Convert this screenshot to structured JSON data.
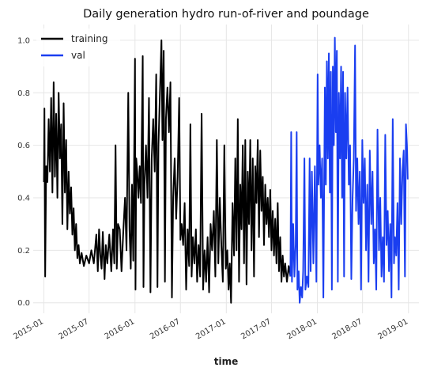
{
  "chart_data": {
    "type": "line",
    "title": "Daily generation hydro run-of-river and poundage",
    "xlabel": "time",
    "ylabel": "",
    "x_axis_type": "date",
    "xlim": [
      "2014-11-19",
      "2019-02-12"
    ],
    "ylim": [
      -0.04,
      1.06
    ],
    "y_ticks": [
      "0.0",
      "0.2",
      "0.4",
      "0.6",
      "0.8",
      "1.0"
    ],
    "x_ticks": [
      "2015-01",
      "2015-07",
      "2016-01",
      "2016-07",
      "2017-01",
      "2017-07",
      "2018-01",
      "2018-07",
      "2019-01"
    ],
    "grid": true,
    "legend_position": "top-left",
    "colors": {
      "training": "#000000",
      "val": "#1a3ef0",
      "grid": "#e6e6e6"
    },
    "series": [
      {
        "name": "training",
        "color": "#000000",
        "points": [
          [
            "2015-01-01",
            0.46
          ],
          [
            "2015-01-03",
            0.74
          ],
          [
            "2015-01-06",
            0.1
          ],
          [
            "2015-01-10",
            0.52
          ],
          [
            "2015-01-15",
            0.46
          ],
          [
            "2015-01-20",
            0.7
          ],
          [
            "2015-01-25",
            0.5
          ],
          [
            "2015-01-30",
            0.78
          ],
          [
            "2015-02-04",
            0.42
          ],
          [
            "2015-02-09",
            0.84
          ],
          [
            "2015-02-14",
            0.48
          ],
          [
            "2015-02-19",
            0.72
          ],
          [
            "2015-02-24",
            0.4
          ],
          [
            "2015-03-01",
            0.8
          ],
          [
            "2015-03-06",
            0.55
          ],
          [
            "2015-03-11",
            0.68
          ],
          [
            "2015-03-16",
            0.3
          ],
          [
            "2015-03-21",
            0.76
          ],
          [
            "2015-03-26",
            0.42
          ],
          [
            "2015-03-31",
            0.62
          ],
          [
            "2015-04-05",
            0.28
          ],
          [
            "2015-04-10",
            0.5
          ],
          [
            "2015-04-15",
            0.34
          ],
          [
            "2015-04-20",
            0.44
          ],
          [
            "2015-04-25",
            0.26
          ],
          [
            "2015-04-30",
            0.36
          ],
          [
            "2015-05-05",
            0.2
          ],
          [
            "2015-05-10",
            0.3
          ],
          [
            "2015-05-15",
            0.17
          ],
          [
            "2015-05-20",
            0.22
          ],
          [
            "2015-05-25",
            0.15
          ],
          [
            "2015-06-01",
            0.19
          ],
          [
            "2015-06-10",
            0.14
          ],
          [
            "2015-06-20",
            0.18
          ],
          [
            "2015-07-01",
            0.15
          ],
          [
            "2015-07-10",
            0.2
          ],
          [
            "2015-07-20",
            0.15
          ],
          [
            "2015-07-30",
            0.26
          ],
          [
            "2015-08-05",
            0.12
          ],
          [
            "2015-08-10",
            0.28
          ],
          [
            "2015-08-15",
            0.18
          ],
          [
            "2015-08-20",
            0.13
          ],
          [
            "2015-08-25",
            0.27
          ],
          [
            "2015-09-01",
            0.09
          ],
          [
            "2015-09-06",
            0.22
          ],
          [
            "2015-09-12",
            0.15
          ],
          [
            "2015-09-20",
            0.26
          ],
          [
            "2015-09-28",
            0.12
          ],
          [
            "2015-10-05",
            0.28
          ],
          [
            "2015-10-10",
            0.15
          ],
          [
            "2015-10-15",
            0.6
          ],
          [
            "2015-10-20",
            0.13
          ],
          [
            "2015-10-25",
            0.3
          ],
          [
            "2015-11-01",
            0.28
          ],
          [
            "2015-11-08",
            0.12
          ],
          [
            "2015-11-15",
            0.27
          ],
          [
            "2015-11-22",
            0.4
          ],
          [
            "2015-11-28",
            0.2
          ],
          [
            "2015-12-05",
            0.8
          ],
          [
            "2015-12-10",
            0.28
          ],
          [
            "2015-12-15",
            0.13
          ],
          [
            "2015-12-20",
            0.45
          ],
          [
            "2015-12-25",
            0.16
          ],
          [
            "2016-01-01",
            0.93
          ],
          [
            "2016-01-03",
            0.05
          ],
          [
            "2016-01-06",
            0.55
          ],
          [
            "2016-01-10",
            0.5
          ],
          [
            "2016-01-15",
            0.4
          ],
          [
            "2016-01-20",
            0.52
          ],
          [
            "2016-01-25",
            0.38
          ],
          [
            "2016-02-01",
            0.94
          ],
          [
            "2016-02-04",
            0.06
          ],
          [
            "2016-02-08",
            0.45
          ],
          [
            "2016-02-14",
            0.6
          ],
          [
            "2016-02-20",
            0.4
          ],
          [
            "2016-02-26",
            0.78
          ],
          [
            "2016-03-03",
            0.04
          ],
          [
            "2016-03-08",
            0.55
          ],
          [
            "2016-03-14",
            0.7
          ],
          [
            "2016-03-20",
            0.5
          ],
          [
            "2016-03-26",
            0.87
          ],
          [
            "2016-03-31",
            0.06
          ],
          [
            "2016-04-04",
            0.6
          ],
          [
            "2016-04-10",
            0.8
          ],
          [
            "2016-04-16",
            1.0
          ],
          [
            "2016-04-20",
            0.62
          ],
          [
            "2016-04-25",
            0.96
          ],
          [
            "2016-04-30",
            0.08
          ],
          [
            "2016-05-04",
            0.7
          ],
          [
            "2016-05-10",
            0.82
          ],
          [
            "2016-05-16",
            0.65
          ],
          [
            "2016-05-22",
            0.84
          ],
          [
            "2016-05-28",
            0.02
          ],
          [
            "2016-06-02",
            0.4
          ],
          [
            "2016-06-08",
            0.55
          ],
          [
            "2016-06-14",
            0.32
          ],
          [
            "2016-06-20",
            0.48
          ],
          [
            "2016-06-26",
            0.78
          ],
          [
            "2016-07-01",
            0.24
          ],
          [
            "2016-07-06",
            0.3
          ],
          [
            "2016-07-12",
            0.22
          ],
          [
            "2016-07-18",
            0.38
          ],
          [
            "2016-07-24",
            0.05
          ],
          [
            "2016-07-30",
            0.28
          ],
          [
            "2016-08-05",
            0.14
          ],
          [
            "2016-08-10",
            0.68
          ],
          [
            "2016-08-15",
            0.1
          ],
          [
            "2016-08-20",
            0.25
          ],
          [
            "2016-08-26",
            0.15
          ],
          [
            "2016-09-01",
            0.28
          ],
          [
            "2016-09-06",
            0.08
          ],
          [
            "2016-09-12",
            0.22
          ],
          [
            "2016-09-18",
            0.1
          ],
          [
            "2016-09-24",
            0.72
          ],
          [
            "2016-09-30",
            0.05
          ],
          [
            "2016-10-06",
            0.2
          ],
          [
            "2016-10-12",
            0.08
          ],
          [
            "2016-10-18",
            0.25
          ],
          [
            "2016-10-24",
            0.04
          ],
          [
            "2016-10-30",
            0.3
          ],
          [
            "2016-11-05",
            0.2
          ],
          [
            "2016-11-12",
            0.35
          ],
          [
            "2016-11-18",
            0.1
          ],
          [
            "2016-11-24",
            0.62
          ],
          [
            "2016-11-30",
            0.15
          ],
          [
            "2016-12-06",
            0.4
          ],
          [
            "2016-12-12",
            0.22
          ],
          [
            "2016-12-18",
            0.08
          ],
          [
            "2016-12-24",
            0.6
          ],
          [
            "2016-12-30",
            0.13
          ],
          [
            "2017-01-05",
            0.2
          ],
          [
            "2017-01-10",
            0.05
          ],
          [
            "2017-01-15",
            0.15
          ],
          [
            "2017-01-20",
            0.0
          ],
          [
            "2017-01-26",
            0.38
          ],
          [
            "2017-02-01",
            0.18
          ],
          [
            "2017-02-06",
            0.55
          ],
          [
            "2017-02-11",
            0.2
          ],
          [
            "2017-02-16",
            0.7
          ],
          [
            "2017-02-21",
            0.08
          ],
          [
            "2017-02-26",
            0.45
          ],
          [
            "2017-03-03",
            0.28
          ],
          [
            "2017-03-08",
            0.6
          ],
          [
            "2017-03-13",
            0.15
          ],
          [
            "2017-03-18",
            0.62
          ],
          [
            "2017-03-23",
            0.07
          ],
          [
            "2017-03-28",
            0.5
          ],
          [
            "2017-04-02",
            0.3
          ],
          [
            "2017-04-07",
            0.62
          ],
          [
            "2017-04-12",
            0.2
          ],
          [
            "2017-04-17",
            0.55
          ],
          [
            "2017-04-22",
            0.1
          ],
          [
            "2017-04-27",
            0.52
          ],
          [
            "2017-05-02",
            0.38
          ],
          [
            "2017-05-07",
            0.62
          ],
          [
            "2017-05-12",
            0.25
          ],
          [
            "2017-05-17",
            0.58
          ],
          [
            "2017-05-22",
            0.35
          ],
          [
            "2017-05-27",
            0.48
          ],
          [
            "2017-06-01",
            0.22
          ],
          [
            "2017-06-06",
            0.45
          ],
          [
            "2017-06-11",
            0.3
          ],
          [
            "2017-06-16",
            0.4
          ],
          [
            "2017-06-21",
            0.25
          ],
          [
            "2017-06-26",
            0.43
          ],
          [
            "2017-07-01",
            0.2
          ],
          [
            "2017-07-06",
            0.35
          ],
          [
            "2017-07-11",
            0.18
          ],
          [
            "2017-07-16",
            0.32
          ],
          [
            "2017-07-21",
            0.15
          ],
          [
            "2017-07-26",
            0.38
          ],
          [
            "2017-07-31",
            0.12
          ],
          [
            "2017-08-05",
            0.25
          ],
          [
            "2017-08-10",
            0.08
          ],
          [
            "2017-08-15",
            0.18
          ],
          [
            "2017-08-20",
            0.1
          ],
          [
            "2017-08-25",
            0.15
          ],
          [
            "2017-09-01",
            0.08
          ],
          [
            "2017-09-08",
            0.14
          ],
          [
            "2017-09-15",
            0.1
          ]
        ]
      },
      {
        "name": "val",
        "color": "#1a3ef0",
        "points": [
          [
            "2017-09-15",
            0.1
          ],
          [
            "2017-09-18",
            0.65
          ],
          [
            "2017-09-21",
            0.08
          ],
          [
            "2017-09-26",
            0.3
          ],
          [
            "2017-10-01",
            0.1
          ],
          [
            "2017-10-06",
            0.22
          ],
          [
            "2017-10-10",
            0.65
          ],
          [
            "2017-10-13",
            0.05
          ],
          [
            "2017-10-18",
            0.12
          ],
          [
            "2017-10-22",
            0.0
          ],
          [
            "2017-10-27",
            0.06
          ],
          [
            "2017-11-01",
            0.02
          ],
          [
            "2017-11-05",
            0.12
          ],
          [
            "2017-11-10",
            0.55
          ],
          [
            "2017-11-14",
            0.05
          ],
          [
            "2017-11-20",
            0.1
          ],
          [
            "2017-11-26",
            0.06
          ],
          [
            "2017-12-01",
            0.55
          ],
          [
            "2017-12-05",
            0.12
          ],
          [
            "2017-12-10",
            0.5
          ],
          [
            "2017-12-16",
            0.15
          ],
          [
            "2017-12-22",
            0.52
          ],
          [
            "2017-12-28",
            0.08
          ],
          [
            "2018-01-02",
            0.87
          ],
          [
            "2018-01-05",
            0.45
          ],
          [
            "2018-01-10",
            0.6
          ],
          [
            "2018-01-15",
            0.4
          ],
          [
            "2018-01-20",
            0.55
          ],
          [
            "2018-01-25",
            0.02
          ],
          [
            "2018-01-31",
            0.82
          ],
          [
            "2018-02-04",
            0.45
          ],
          [
            "2018-02-08",
            0.92
          ],
          [
            "2018-02-12",
            0.55
          ],
          [
            "2018-02-16",
            0.95
          ],
          [
            "2018-02-20",
            0.42
          ],
          [
            "2018-02-24",
            0.88
          ],
          [
            "2018-02-28",
            0.05
          ],
          [
            "2018-03-04",
            0.9
          ],
          [
            "2018-03-08",
            0.6
          ],
          [
            "2018-03-12",
            1.01
          ],
          [
            "2018-03-16",
            0.65
          ],
          [
            "2018-03-20",
            0.96
          ],
          [
            "2018-03-24",
            0.08
          ],
          [
            "2018-03-28",
            0.8
          ],
          [
            "2018-04-02",
            0.55
          ],
          [
            "2018-04-06",
            0.9
          ],
          [
            "2018-04-10",
            0.4
          ],
          [
            "2018-04-14",
            0.88
          ],
          [
            "2018-04-18",
            0.1
          ],
          [
            "2018-04-22",
            0.8
          ],
          [
            "2018-04-27",
            0.55
          ],
          [
            "2018-05-02",
            0.82
          ],
          [
            "2018-05-07",
            0.45
          ],
          [
            "2018-05-12",
            0.6
          ],
          [
            "2018-05-17",
            0.09
          ],
          [
            "2018-05-22",
            0.4
          ],
          [
            "2018-05-27",
            0.55
          ],
          [
            "2018-06-01",
            0.98
          ],
          [
            "2018-06-05",
            0.35
          ],
          [
            "2018-06-10",
            0.55
          ],
          [
            "2018-06-15",
            0.3
          ],
          [
            "2018-06-20",
            0.5
          ],
          [
            "2018-06-25",
            0.05
          ],
          [
            "2018-06-30",
            0.62
          ],
          [
            "2018-07-05",
            0.38
          ],
          [
            "2018-07-10",
            0.55
          ],
          [
            "2018-07-15",
            0.2
          ],
          [
            "2018-07-20",
            0.45
          ],
          [
            "2018-07-25",
            0.08
          ],
          [
            "2018-07-30",
            0.58
          ],
          [
            "2018-08-05",
            0.3
          ],
          [
            "2018-08-10",
            0.5
          ],
          [
            "2018-08-15",
            0.15
          ],
          [
            "2018-08-20",
            0.28
          ],
          [
            "2018-08-25",
            0.05
          ],
          [
            "2018-08-30",
            0.66
          ],
          [
            "2018-09-05",
            0.2
          ],
          [
            "2018-09-10",
            0.4
          ],
          [
            "2018-09-15",
            0.1
          ],
          [
            "2018-09-20",
            0.25
          ],
          [
            "2018-09-25",
            0.08
          ],
          [
            "2018-09-30",
            0.64
          ],
          [
            "2018-10-05",
            0.22
          ],
          [
            "2018-10-10",
            0.35
          ],
          [
            "2018-10-15",
            0.12
          ],
          [
            "2018-10-20",
            0.3
          ],
          [
            "2018-10-25",
            0.02
          ],
          [
            "2018-10-30",
            0.7
          ],
          [
            "2018-11-04",
            0.15
          ],
          [
            "2018-11-08",
            0.25
          ],
          [
            "2018-11-13",
            0.18
          ],
          [
            "2018-11-18",
            0.38
          ],
          [
            "2018-11-23",
            0.05
          ],
          [
            "2018-11-28",
            0.55
          ],
          [
            "2018-12-03",
            0.3
          ],
          [
            "2018-12-08",
            0.5
          ],
          [
            "2018-12-13",
            0.58
          ],
          [
            "2018-12-18",
            0.1
          ],
          [
            "2018-12-22",
            0.68
          ],
          [
            "2018-12-26",
            0.6
          ],
          [
            "2018-12-29",
            0.47
          ]
        ]
      }
    ]
  }
}
